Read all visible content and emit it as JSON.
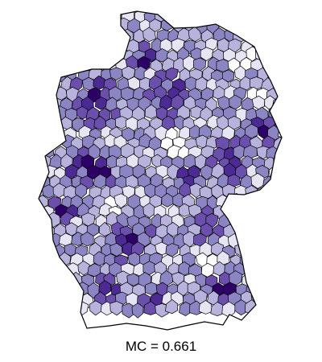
{
  "map": {
    "caption": "MC = 0.661",
    "palette": [
      "#ffffff",
      "#e7e5f3",
      "#b7b3dc",
      "#8c85c3",
      "#6a4fad",
      "#4c2a93",
      "#2d0068"
    ],
    "border_color": "#000000"
  }
}
